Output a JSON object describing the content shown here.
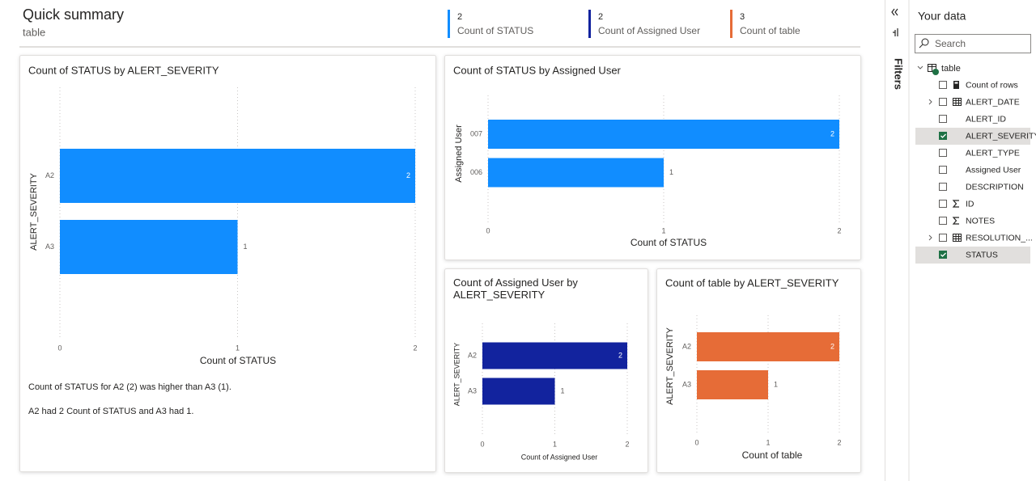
{
  "header": {
    "title": "Quick summary",
    "subtitle": "table"
  },
  "kpis": [
    {
      "value": 2,
      "label": "Count of STATUS",
      "color": "#118dff"
    },
    {
      "value": 2,
      "label": "Count of Assigned User",
      "color": "#12239e"
    },
    {
      "value": 3,
      "label": "Count of table",
      "color": "#e66c37"
    }
  ],
  "chart_data": [
    {
      "type": "bar",
      "orientation": "horizontal",
      "title": "Count of STATUS by ALERT_SEVERITY",
      "categories": [
        "A2",
        "A3"
      ],
      "values": [
        2,
        1
      ],
      "color": "#118dff",
      "xlim": [
        0,
        2
      ],
      "xticks": [
        0,
        1,
        2
      ],
      "grid": true,
      "x_label": "Count of STATUS",
      "y_label": "ALERT_SEVERITY"
    },
    {
      "type": "bar",
      "orientation": "horizontal",
      "title": "Count of STATUS by Assigned User",
      "categories": [
        "007",
        "006"
      ],
      "values": [
        2,
        1
      ],
      "color": "#118dff",
      "xlim": [
        0,
        2
      ],
      "xticks": [
        0,
        1,
        2
      ],
      "grid": true,
      "x_label": "Count of STATUS",
      "y_label": "Assigned User"
    },
    {
      "type": "bar",
      "orientation": "horizontal",
      "title": "Count of Assigned User by ALERT_SEVERITY",
      "categories": [
        "A2",
        "A3"
      ],
      "values": [
        2,
        1
      ],
      "color": "#12239e",
      "xlim": [
        0,
        2
      ],
      "xticks": [
        0,
        1,
        2
      ],
      "grid": true,
      "x_label": "Count of Assigned User",
      "y_label": "ALERT_SEVERITY"
    },
    {
      "type": "bar",
      "orientation": "horizontal",
      "title": "Count of table by ALERT_SEVERITY",
      "categories": [
        "A2",
        "A3"
      ],
      "values": [
        2,
        1
      ],
      "color": "#e66c37",
      "xlim": [
        0,
        2
      ],
      "xticks": [
        0,
        1,
        2
      ],
      "grid": true,
      "x_label": "Count of table",
      "y_label": "ALERT_SEVERITY"
    }
  ],
  "narrative": [
    "Count of STATUS for A2 (2) was higher than A3 (1).",
    "A2 had 2 Count of STATUS and A3 had 1."
  ],
  "filters": {
    "label": "Filters"
  },
  "data_pane": {
    "title": "Your data",
    "search_placeholder": "Search",
    "table": "table",
    "fields": [
      {
        "name": "Count of rows",
        "icon": "calculator",
        "checked": false,
        "expandable": false
      },
      {
        "name": "ALERT_DATE",
        "icon": "table",
        "checked": false,
        "expandable": true
      },
      {
        "name": "ALERT_ID",
        "icon": "none",
        "checked": false,
        "expandable": false
      },
      {
        "name": "ALERT_SEVERITY",
        "icon": "none",
        "checked": true,
        "expandable": false
      },
      {
        "name": "ALERT_TYPE",
        "icon": "none",
        "checked": false,
        "expandable": false
      },
      {
        "name": "Assigned User",
        "icon": "none",
        "checked": false,
        "expandable": false
      },
      {
        "name": "DESCRIPTION",
        "icon": "none",
        "checked": false,
        "expandable": false
      },
      {
        "name": "ID",
        "icon": "sigma",
        "checked": false,
        "expandable": false
      },
      {
        "name": "NOTES",
        "icon": "sigma",
        "checked": false,
        "expandable": false
      },
      {
        "name": "RESOLUTION_...",
        "icon": "table",
        "checked": false,
        "expandable": true
      },
      {
        "name": "STATUS",
        "icon": "none",
        "checked": true,
        "expandable": false
      }
    ]
  }
}
